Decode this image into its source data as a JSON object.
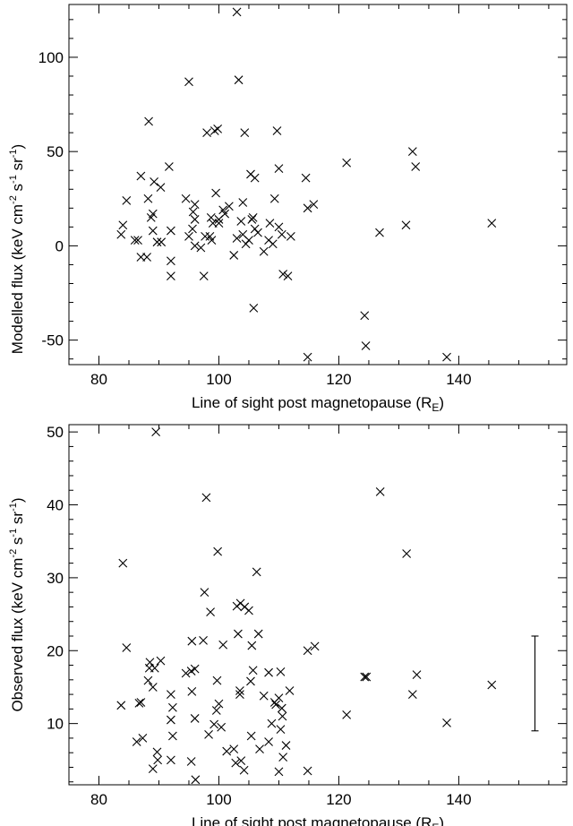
{
  "chart_data": [
    {
      "type": "scatter",
      "marker": "x",
      "xlabel": "Line of sight post magnetopause",
      "xlabel_unit_base": "R",
      "xlabel_unit_sub": "E",
      "ylabel": "Modelled flux",
      "ylabel_unit": "keV cm",
      "ylabel_exp1": "-2",
      "ylabel_s": " s",
      "ylabel_exp2": "-1",
      "ylabel_sr": " sr",
      "ylabel_exp3": "-1",
      "xlim": [
        75,
        158
      ],
      "ylim": [
        -63,
        128
      ],
      "xticks": [
        80,
        100,
        120,
        140
      ],
      "yticks": [
        -50,
        0,
        50,
        100
      ],
      "x_tick_labels": [
        "80",
        "100",
        "120",
        "140"
      ],
      "y_tick_labels": [
        "-50",
        "0",
        "50",
        "100"
      ],
      "grid": false,
      "points": [
        [
          103,
          124
        ],
        [
          95,
          87
        ],
        [
          103.3,
          88
        ],
        [
          88.3,
          66
        ],
        [
          98,
          60
        ],
        [
          99.3,
          61
        ],
        [
          99.8,
          62
        ],
        [
          104.3,
          60
        ],
        [
          109.7,
          61
        ],
        [
          91.7,
          42
        ],
        [
          110,
          41
        ],
        [
          105.3,
          38
        ],
        [
          106,
          36
        ],
        [
          114.5,
          36
        ],
        [
          121.3,
          44
        ],
        [
          132.3,
          50
        ],
        [
          132.8,
          42
        ],
        [
          87,
          37
        ],
        [
          89.2,
          34
        ],
        [
          90.3,
          31
        ],
        [
          84.6,
          24
        ],
        [
          88.2,
          25
        ],
        [
          94.5,
          25
        ],
        [
          96,
          22
        ],
        [
          99.5,
          28
        ],
        [
          104,
          23
        ],
        [
          109.3,
          25
        ],
        [
          114.8,
          20
        ],
        [
          115.8,
          22
        ],
        [
          89,
          17
        ],
        [
          95.7,
          18
        ],
        [
          98.7,
          15
        ],
        [
          100.7,
          19
        ],
        [
          101.7,
          21
        ],
        [
          103.7,
          13
        ],
        [
          105.7,
          15
        ],
        [
          108.5,
          12
        ],
        [
          84,
          11
        ],
        [
          86,
          3
        ],
        [
          87,
          -6
        ],
        [
          88,
          -6
        ],
        [
          89,
          8
        ],
        [
          89.7,
          2
        ],
        [
          92,
          8
        ],
        [
          92,
          -8
        ],
        [
          92,
          -16
        ],
        [
          95,
          5
        ],
        [
          95.6,
          9
        ],
        [
          96,
          0
        ],
        [
          97,
          -1
        ],
        [
          97.5,
          -16
        ],
        [
          98.5,
          5
        ],
        [
          99,
          12
        ],
        [
          100,
          14
        ],
        [
          101,
          17
        ],
        [
          102.5,
          -5
        ],
        [
          103,
          4
        ],
        [
          104,
          6
        ],
        [
          105,
          3
        ],
        [
          105.5,
          14
        ],
        [
          106,
          9
        ],
        [
          106.5,
          7
        ],
        [
          107.5,
          -3
        ],
        [
          108.3,
          3
        ],
        [
          109,
          1
        ],
        [
          110,
          10
        ],
        [
          110.5,
          6
        ],
        [
          110.7,
          -15
        ],
        [
          111.5,
          -16
        ],
        [
          112,
          5
        ],
        [
          83.7,
          6
        ],
        [
          86.5,
          3
        ],
        [
          88.7,
          15
        ],
        [
          90.4,
          2
        ],
        [
          96,
          14
        ],
        [
          97.7,
          5
        ],
        [
          98.8,
          3
        ],
        [
          100,
          12
        ],
        [
          104.5,
          1
        ],
        [
          105.8,
          -33
        ],
        [
          114.8,
          -59
        ],
        [
          124.3,
          -37
        ],
        [
          124.5,
          -53
        ],
        [
          126.8,
          7
        ],
        [
          131.2,
          11
        ],
        [
          138,
          -59
        ],
        [
          145.5,
          12
        ]
      ]
    },
    {
      "type": "scatter",
      "marker": "x",
      "xlabel": "Line of sight post magnetopause",
      "xlabel_unit_base": "R",
      "xlabel_unit_sub": "E",
      "ylabel": "Observed flux",
      "ylabel_unit": "keV cm",
      "ylabel_exp1": "-2",
      "ylabel_s": " s",
      "ylabel_exp2": "-1",
      "ylabel_sr": " sr",
      "ylabel_exp3": "-1",
      "xlim": [
        75,
        158
      ],
      "ylim": [
        1.6,
        51
      ],
      "xticks": [
        80,
        100,
        120,
        140
      ],
      "yticks": [
        10,
        20,
        30,
        40,
        50
      ],
      "x_tick_labels": [
        "80",
        "100",
        "120",
        "140"
      ],
      "y_tick_labels": [
        "10",
        "20",
        "30",
        "40",
        "50"
      ],
      "grid": false,
      "points": [
        [
          89.5,
          50
        ],
        [
          97.9,
          41
        ],
        [
          126.9,
          41.8
        ],
        [
          99.8,
          33.6
        ],
        [
          131.3,
          33.3
        ],
        [
          84,
          32
        ],
        [
          106.3,
          30.8
        ],
        [
          97.6,
          28
        ],
        [
          98.6,
          25.3
        ],
        [
          103,
          26.1
        ],
        [
          103.6,
          26.5
        ],
        [
          104.3,
          26
        ],
        [
          105,
          25.5
        ],
        [
          103.2,
          22.3
        ],
        [
          106.6,
          22.3
        ],
        [
          95.5,
          21.3
        ],
        [
          97.4,
          21.4
        ],
        [
          100.7,
          20.8
        ],
        [
          105.5,
          20.7
        ],
        [
          84.6,
          20.4
        ],
        [
          88.5,
          18.4
        ],
        [
          90.3,
          18.6
        ],
        [
          88.4,
          17.6
        ],
        [
          89.3,
          17.6
        ],
        [
          114.8,
          20
        ],
        [
          116,
          20.6
        ],
        [
          94.5,
          16.9
        ],
        [
          95.4,
          17.2
        ],
        [
          96,
          17.5
        ],
        [
          99.7,
          15.9
        ],
        [
          105.7,
          17.3
        ],
        [
          108.3,
          17
        ],
        [
          110.3,
          17.1
        ],
        [
          88.2,
          15.9
        ],
        [
          89,
          15
        ],
        [
          92,
          14
        ],
        [
          95.5,
          14.4
        ],
        [
          103.5,
          14
        ],
        [
          105.3,
          15.8
        ],
        [
          107.5,
          13.8
        ],
        [
          110,
          13.5
        ],
        [
          111.8,
          14.5
        ],
        [
          121.3,
          11.2
        ],
        [
          124.3,
          16.4
        ],
        [
          124.6,
          16.4
        ],
        [
          133,
          16.7
        ],
        [
          132.3,
          14
        ],
        [
          138,
          10.1
        ],
        [
          145.5,
          15.3
        ],
        [
          92.3,
          12.2
        ],
        [
          92,
          10.5
        ],
        [
          92.3,
          8.3
        ],
        [
          89.7,
          6.1
        ],
        [
          86.3,
          7.5
        ],
        [
          86.7,
          12.8
        ],
        [
          87,
          12.9
        ],
        [
          87.3,
          8
        ],
        [
          89,
          3.8
        ],
        [
          89.8,
          5
        ],
        [
          92,
          5
        ],
        [
          95.4,
          4.8
        ],
        [
          96.1,
          2.3
        ],
        [
          98.3,
          8.5
        ],
        [
          99.2,
          9.9
        ],
        [
          99.6,
          11.8
        ],
        [
          100,
          12.7
        ],
        [
          101.3,
          6.2
        ],
        [
          102.8,
          4.6
        ],
        [
          103.7,
          4.9
        ],
        [
          104.2,
          3.6
        ],
        [
          105.4,
          8.3
        ],
        [
          106.8,
          6.5
        ],
        [
          108.3,
          7.5
        ],
        [
          109.5,
          12.6
        ],
        [
          110.5,
          12.1
        ],
        [
          111.2,
          7
        ],
        [
          110.7,
          5.4
        ],
        [
          110,
          3.4
        ],
        [
          114.8,
          3.5
        ],
        [
          83.7,
          12.5
        ],
        [
          96,
          10.7
        ],
        [
          100.4,
          9.5
        ],
        [
          102.5,
          6.5
        ],
        [
          108.8,
          10
        ],
        [
          110.3,
          9.2
        ],
        [
          109.3,
          12.9
        ],
        [
          110.6,
          11
        ],
        [
          103.5,
          14.5
        ]
      ],
      "error_bar": {
        "x": 152.7,
        "y_low": 9,
        "y_high": 22
      }
    }
  ]
}
